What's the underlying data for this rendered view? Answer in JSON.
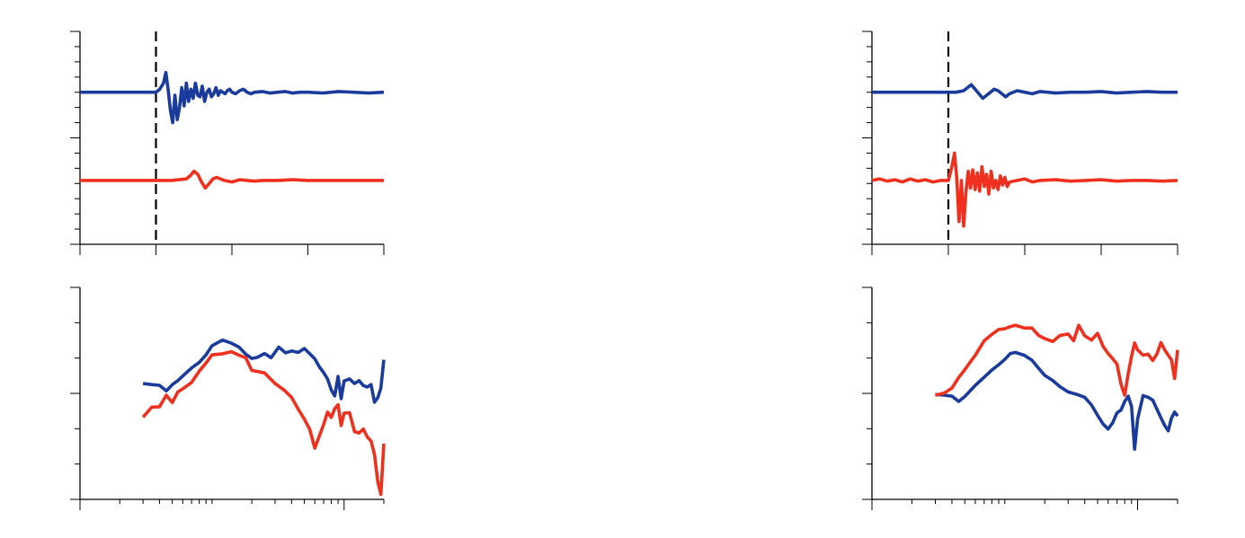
{
  "colors": {
    "blue": "#1a3a9c",
    "red": "#f0301e",
    "axis": "#000000",
    "stimulus": "#000000"
  },
  "chart_data": [
    {
      "panel": "top-left",
      "type": "line",
      "xlim": [
        0,
        400
      ],
      "ylim": [
        -7,
        7
      ],
      "stimulus_x": 100,
      "xticks_major": [
        0,
        100,
        200,
        300,
        400
      ],
      "xticks_minor": [],
      "yticks_major": [
        0
      ],
      "yticks_minor": [
        -6,
        -5,
        -4,
        -3,
        -2,
        -1,
        1,
        2,
        3,
        4,
        5,
        6
      ],
      "series": [
        {
          "color": "blue",
          "x": [
            0,
            100,
            105,
            110,
            113,
            116,
            119,
            122,
            125,
            128,
            131,
            134,
            137,
            140,
            143,
            146,
            149,
            152,
            155,
            158,
            161,
            164,
            167,
            170,
            173,
            176,
            179,
            182,
            185,
            188,
            191,
            194,
            197,
            200,
            205,
            210,
            215,
            220,
            225,
            230,
            240,
            250,
            260,
            270,
            280,
            290,
            300,
            320,
            340,
            360,
            380,
            400
          ],
          "y": [
            3,
            3,
            3.2,
            3.6,
            4.3,
            3.2,
            1.8,
            1.0,
            2.8,
            1.2,
            2.0,
            3.3,
            2.1,
            3.6,
            2.4,
            3.2,
            2.6,
            3.6,
            2.8,
            2.7,
            3.4,
            2.4,
            3.0,
            3.2,
            2.7,
            2.9,
            3.3,
            2.8,
            3.1,
            3.0,
            2.9,
            3.1,
            3.2,
            3.0,
            2.9,
            3.1,
            3.2,
            3.0,
            2.9,
            3.0,
            3.05,
            2.95,
            3.0,
            3.05,
            2.95,
            3.0,
            3.0,
            2.95,
            3.05,
            3.0,
            2.95,
            3.0
          ]
        },
        {
          "color": "red",
          "x": [
            0,
            100,
            110,
            120,
            130,
            140,
            145,
            150,
            155,
            160,
            165,
            170,
            175,
            180,
            190,
            200,
            210,
            220,
            230,
            240,
            260,
            280,
            300,
            320,
            340,
            360,
            380,
            400
          ],
          "y": [
            -2.8,
            -2.8,
            -2.8,
            -2.8,
            -2.75,
            -2.7,
            -2.5,
            -2.2,
            -2.4,
            -2.9,
            -3.3,
            -3.0,
            -2.7,
            -2.6,
            -2.8,
            -2.9,
            -2.75,
            -2.8,
            -2.85,
            -2.8,
            -2.8,
            -2.75,
            -2.8,
            -2.8,
            -2.8,
            -2.8,
            -2.8,
            -2.8
          ]
        }
      ]
    },
    {
      "panel": "top-right",
      "type": "line",
      "xlim": [
        0,
        400
      ],
      "ylim": [
        -7,
        7
      ],
      "stimulus_x": 100,
      "xticks_major": [
        0,
        100,
        200,
        300,
        400
      ],
      "xticks_minor": [],
      "yticks_major": [
        0
      ],
      "yticks_minor": [
        -6,
        -5,
        -4,
        -3,
        -2,
        -1,
        1,
        2,
        3,
        4,
        5,
        6
      ],
      "series": [
        {
          "color": "blue",
          "x": [
            0,
            100,
            110,
            120,
            125,
            130,
            135,
            140,
            145,
            150,
            155,
            160,
            165,
            170,
            175,
            180,
            190,
            200,
            210,
            220,
            230,
            240,
            260,
            280,
            300,
            320,
            340,
            360,
            380,
            400
          ],
          "y": [
            3,
            3,
            3.0,
            3.1,
            3.3,
            3.5,
            3.2,
            2.9,
            2.6,
            2.8,
            3.0,
            3.2,
            3.1,
            2.9,
            2.7,
            2.9,
            3.1,
            3.0,
            2.9,
            3.05,
            3.0,
            2.95,
            3.0,
            3.0,
            3.05,
            2.95,
            3.0,
            3.05,
            3.0,
            3.0
          ]
        },
        {
          "color": "red",
          "x": [
            0,
            10,
            20,
            30,
            40,
            50,
            60,
            70,
            80,
            90,
            100,
            105,
            108,
            111,
            114,
            117,
            120,
            123,
            126,
            129,
            132,
            135,
            138,
            141,
            144,
            147,
            150,
            153,
            156,
            159,
            162,
            165,
            168,
            171,
            174,
            177,
            180,
            190,
            200,
            210,
            220,
            240,
            260,
            280,
            300,
            320,
            340,
            360,
            380,
            400
          ],
          "y": [
            -2.8,
            -2.7,
            -2.85,
            -2.75,
            -2.9,
            -2.7,
            -2.85,
            -2.75,
            -2.9,
            -2.8,
            -2.8,
            -1.8,
            -1.0,
            -2.6,
            -5.5,
            -2.8,
            -5.8,
            -3.6,
            -2.2,
            -3.3,
            -2.1,
            -3.4,
            -2.3,
            -3.5,
            -1.9,
            -3.2,
            -2.4,
            -3.7,
            -2.2,
            -3.3,
            -2.8,
            -3.4,
            -2.5,
            -3.1,
            -2.6,
            -3.2,
            -2.9,
            -2.8,
            -2.7,
            -2.9,
            -2.8,
            -2.75,
            -2.85,
            -2.8,
            -2.75,
            -2.85,
            -2.8,
            -2.8,
            -2.85,
            -2.8
          ]
        }
      ]
    },
    {
      "panel": "bottom-left",
      "type": "line",
      "x_scale": "log",
      "xlim": [
        0.1,
        20
      ],
      "ylim": [
        -30,
        30
      ],
      "xticks_major": [
        0.1,
        10
      ],
      "xticks_minor": [
        0.2,
        0.3,
        0.4,
        0.5,
        0.6,
        0.7,
        0.8,
        0.9,
        1,
        2,
        3,
        4,
        5,
        6,
        7,
        8,
        9,
        20
      ],
      "yticks_major": [
        0
      ],
      "yticks_minor": [
        -20,
        -10,
        10,
        20
      ],
      "series": [
        {
          "color": "blue",
          "x": [
            0.3,
            0.35,
            0.4,
            0.45,
            0.5,
            0.55,
            0.6,
            0.7,
            0.8,
            0.9,
            1.0,
            1.2,
            1.4,
            1.6,
            1.8,
            2.0,
            2.2,
            2.5,
            2.8,
            3.2,
            3.6,
            4,
            4.5,
            5,
            5.5,
            6,
            6.5,
            7,
            7.5,
            8,
            8.5,
            9,
            9.5,
            10,
            11,
            12,
            13,
            14,
            15,
            16,
            17,
            18,
            19,
            20
          ],
          "y": [
            2.8,
            2.5,
            2.3,
            0.7,
            2.5,
            3.6,
            4.9,
            7.2,
            8.8,
            10.9,
            13.5,
            15.1,
            14.2,
            13.1,
            11.1,
            9.9,
            10.2,
            11.3,
            10.1,
            13.1,
            11.5,
            12.0,
            11.6,
            12.7,
            11.2,
            9.8,
            7.5,
            5.9,
            4.1,
            1.0,
            -0.7,
            4.8,
            -1.5,
            3.5,
            4.1,
            2.8,
            3.6,
            2.2,
            1.8,
            2.5,
            -2.5,
            -1.2,
            1.5,
            9.5
          ]
        },
        {
          "color": "red",
          "x": [
            0.3,
            0.35,
            0.4,
            0.45,
            0.5,
            0.55,
            0.6,
            0.7,
            0.8,
            0.9,
            1.0,
            1.2,
            1.4,
            1.6,
            1.8,
            2.0,
            2.5,
            3,
            3.5,
            4,
            4.5,
            5,
            5.5,
            6,
            6.5,
            7,
            7.5,
            8,
            8.5,
            9,
            9.5,
            10,
            11,
            12,
            13,
            14,
            15,
            16,
            17,
            18,
            19,
            20
          ],
          "y": [
            -6.7,
            -3.9,
            -3.8,
            -0.5,
            -2.6,
            0.4,
            1.3,
            3.1,
            6.3,
            8.6,
            10.9,
            11.2,
            11.8,
            10.8,
            10.1,
            6.5,
            5.8,
            2.8,
            1.0,
            -1.1,
            -4.5,
            -7.3,
            -10.2,
            -15.5,
            -12.0,
            -8.8,
            -5.3,
            -6.8,
            -4.3,
            -3.2,
            -9.1,
            -5.6,
            -5.5,
            -10.8,
            -11.2,
            -10.1,
            -12.3,
            -13.5,
            -17.3,
            -25.0,
            -28.6,
            -14.2
          ]
        }
      ]
    },
    {
      "panel": "bottom-right",
      "type": "line",
      "x_scale": "log",
      "xlim": [
        0.1,
        20
      ],
      "ylim": [
        -30,
        30
      ],
      "xticks_major": [
        0.1,
        10
      ],
      "xticks_minor": [
        0.2,
        0.3,
        0.4,
        0.5,
        0.6,
        0.7,
        0.8,
        0.9,
        1,
        2,
        3,
        4,
        5,
        6,
        7,
        8,
        9,
        20
      ],
      "yticks_major": [
        0
      ],
      "yticks_minor": [
        -20,
        -10,
        10,
        20
      ],
      "series": [
        {
          "color": "blue",
          "x": [
            0.3,
            0.35,
            0.4,
            0.45,
            0.5,
            0.6,
            0.7,
            0.8,
            0.9,
            1.0,
            1.1,
            1.2,
            1.4,
            1.6,
            1.8,
            2.0,
            2.3,
            2.6,
            3,
            3.5,
            4,
            4.5,
            5,
            5.5,
            6,
            6.5,
            7,
            7.5,
            8,
            8.5,
            9,
            9.5,
            10,
            11,
            12,
            13,
            14,
            15,
            16,
            17,
            18,
            19,
            20
          ],
          "y": [
            -0.3,
            -0.5,
            -0.8,
            -2.3,
            -0.9,
            2.3,
            4.6,
            6.6,
            8.1,
            9.6,
            11.3,
            11.6,
            10.8,
            9.4,
            7.1,
            5.1,
            3.6,
            1.9,
            0.4,
            -0.3,
            -1.1,
            -3.3,
            -6.2,
            -8.7,
            -10.1,
            -8.3,
            -5.5,
            -4.7,
            -2.3,
            -0.8,
            -3.7,
            -15.8,
            -7.3,
            -0.6,
            -1.1,
            -1.9,
            -4.5,
            -6.9,
            -9.1,
            -10.6,
            -7.0,
            -5.3,
            -6.4
          ]
        },
        {
          "color": "red",
          "x": [
            0.3,
            0.35,
            0.4,
            0.45,
            0.5,
            0.55,
            0.6,
            0.7,
            0.8,
            0.9,
            1.0,
            1.1,
            1.2,
            1.4,
            1.6,
            1.8,
            2.0,
            2.3,
            2.6,
            3,
            3.3,
            3.6,
            4,
            4.5,
            5,
            5.5,
            6,
            6.5,
            7,
            7.5,
            8,
            8.5,
            9,
            9.5,
            10,
            11,
            12,
            13,
            14,
            15,
            16,
            17,
            18,
            19,
            20
          ],
          "y": [
            -0.5,
            0.1,
            1.5,
            4.5,
            6.7,
            8.9,
            10.8,
            14.9,
            16.7,
            18.1,
            18.3,
            18.9,
            19.3,
            18.5,
            18.5,
            16.4,
            15.5,
            14.7,
            16.4,
            16.8,
            14.9,
            19.3,
            16.3,
            15.1,
            17.0,
            13.3,
            11.3,
            9.8,
            8.3,
            2.6,
            -0.5,
            5.6,
            10.5,
            14.3,
            12.3,
            10.8,
            11.1,
            9.3,
            11.2,
            14.4,
            12.3,
            10.8,
            9.5,
            4.2,
            12.3
          ]
        }
      ]
    }
  ]
}
